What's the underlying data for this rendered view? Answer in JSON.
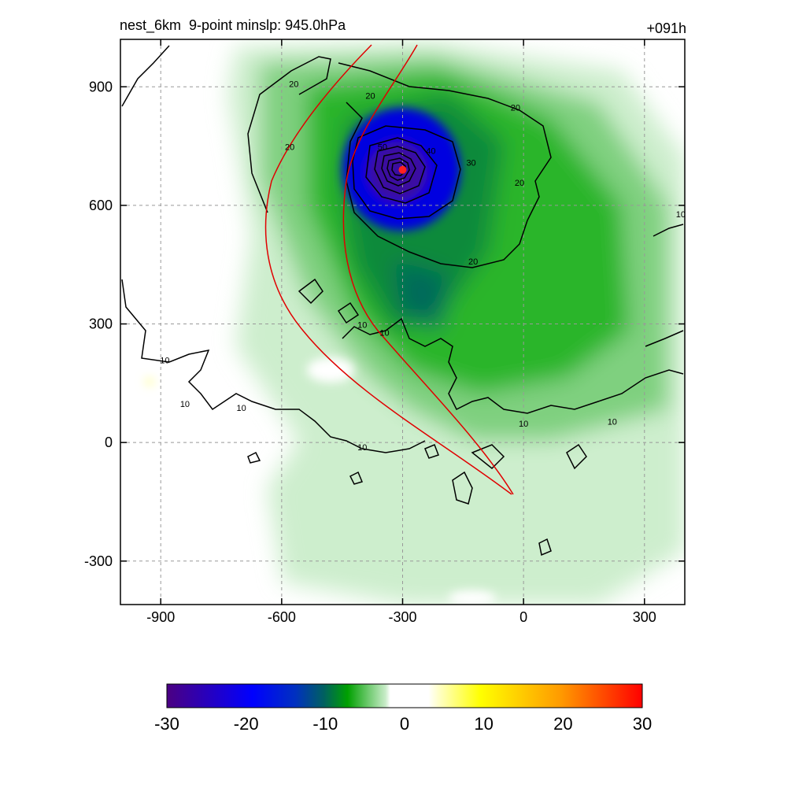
{
  "chart_data": {
    "type": "heatmap",
    "title": "nest_6km  9-point minslp: 945.0hPa",
    "forecast_hour": "+091h",
    "x_ticks": [
      -900,
      -600,
      -300,
      0,
      300
    ],
    "y_ticks": [
      900,
      600,
      300,
      0,
      -300
    ],
    "xlim": [
      -1000,
      400
    ],
    "ylim": [
      -410,
      1020
    ],
    "grid": true,
    "colorbar": {
      "min": -30,
      "max": 30,
      "ticks": [
        -30,
        -20,
        -10,
        0,
        10,
        20,
        30
      ],
      "placement": "bottom",
      "colors": {
        "min": "#4b0082",
        "blue": "#0000ff",
        "teal": "#006060",
        "green": "#00a000",
        "light_green": "#c8ecc8",
        "zero": "#ffffff",
        "yellow": "#ffff00",
        "orange": "#ff9900",
        "max": "#ff0000"
      }
    },
    "storm_center": {
      "x": -300,
      "y": 690,
      "color": "#ff2020"
    },
    "contour_labels": [
      {
        "text": "20",
        "x": -570,
        "y": 900
      },
      {
        "text": "20",
        "x": -580,
        "y": 740
      },
      {
        "text": "20",
        "x": -380,
        "y": 870
      },
      {
        "text": "20",
        "x": -20,
        "y": 840
      },
      {
        "text": "20",
        "x": -10,
        "y": 650
      },
      {
        "text": "20",
        "x": -125,
        "y": 450
      },
      {
        "text": "30",
        "x": -130,
        "y": 700
      },
      {
        "text": "40",
        "x": -230,
        "y": 730
      },
      {
        "text": "50",
        "x": -350,
        "y": 740
      },
      {
        "text": "10",
        "x": 390,
        "y": 570
      },
      {
        "text": "10",
        "x": -890,
        "y": 200
      },
      {
        "text": "10",
        "x": -840,
        "y": 90
      },
      {
        "text": "10",
        "x": -700,
        "y": 80
      },
      {
        "text": "10",
        "x": -400,
        "y": 290
      },
      {
        "text": "10",
        "x": -345,
        "y": 270
      },
      {
        "text": "10",
        "x": -400,
        "y": -20
      },
      {
        "text": "10",
        "x": 0,
        "y": 40
      },
      {
        "text": "10",
        "x": 220,
        "y": 45
      }
    ],
    "track_color": "#e00000",
    "contour_color": "#000000"
  }
}
